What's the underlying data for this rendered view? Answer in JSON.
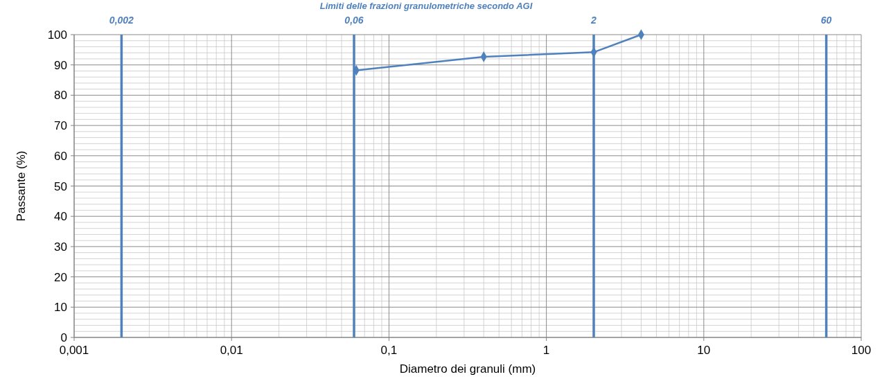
{
  "chart_data": {
    "type": "line",
    "title": "Limiti delle frazioni granulometriche secondo AGI",
    "xlabel": "Diametro dei granuli (mm)",
    "ylabel": "Passante (%)",
    "x": [
      0.062,
      0.4,
      2,
      4
    ],
    "series": [
      {
        "color": "#4f81bd",
        "values": [
          88.2,
          92.7,
          94.2,
          100
        ]
      }
    ],
    "log": "x",
    "xlim": [
      0.001,
      100
    ],
    "ylim": [
      0,
      100
    ],
    "xticks": [
      {
        "value": 0.001,
        "label": "0,001"
      },
      {
        "value": 0.01,
        "label": "0,01"
      },
      {
        "value": 0.1,
        "label": "0,1"
      },
      1,
      10,
      100
    ],
    "yticks": [
      0,
      10,
      20,
      30,
      40,
      50,
      60,
      70,
      80,
      90,
      100
    ],
    "grid": true,
    "marker": "diamond",
    "line_style": "solid",
    "ref_lines": [
      {
        "axis": "x",
        "value": 0.002,
        "label": "0,002",
        "color": "#4f81bd"
      },
      {
        "axis": "x",
        "value": 0.06,
        "label": "0,06",
        "color": "#4f81bd"
      },
      {
        "axis": "x",
        "value": 2,
        "label": "2",
        "color": "#4f81bd"
      },
      {
        "axis": "x",
        "value": 60,
        "label": "60",
        "color": "#4f81bd"
      }
    ]
  }
}
